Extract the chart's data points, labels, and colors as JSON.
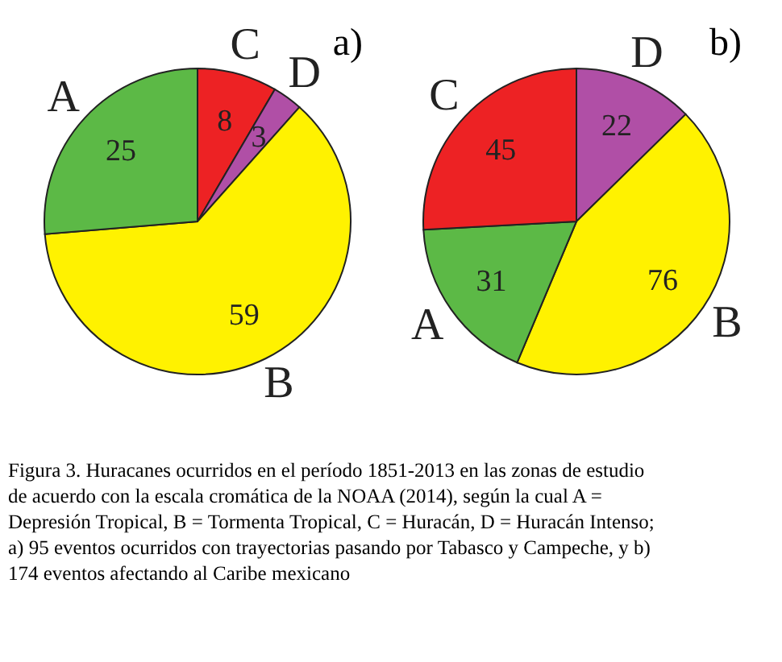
{
  "chart_data": [
    {
      "type": "pie",
      "title": "a)",
      "categories": [
        "C",
        "D",
        "B",
        "A"
      ],
      "values": [
        8,
        3,
        59,
        25
      ],
      "colors": [
        "#ed2224",
        "#b04fa6",
        "#fff200",
        "#5cb946"
      ],
      "data_labels": true,
      "legend": false,
      "annotations": [
        "Figura 3. Huracanes ocurridos en el período 1851-2013 en las zonas de estudio de acuerdo con la escala cromática de la NOAA (2014), según la cual A = Depresión Tropical, B = Tormenta Tropical, C = Huracán, D = Huracán Intenso; a) 95 eventos ocurridos con trayectorias pasando por Tabasco y Campeche, y b) 174 eventos afectando al Caribe mexicano"
      ]
    },
    {
      "type": "pie",
      "title": "b)",
      "categories": [
        "D",
        "B",
        "A",
        "C"
      ],
      "values": [
        22,
        76,
        31,
        45
      ],
      "colors": [
        "#b04fa6",
        "#fff200",
        "#5cb946",
        "#ed2224"
      ],
      "data_labels": true,
      "legend": false
    }
  ]
}
